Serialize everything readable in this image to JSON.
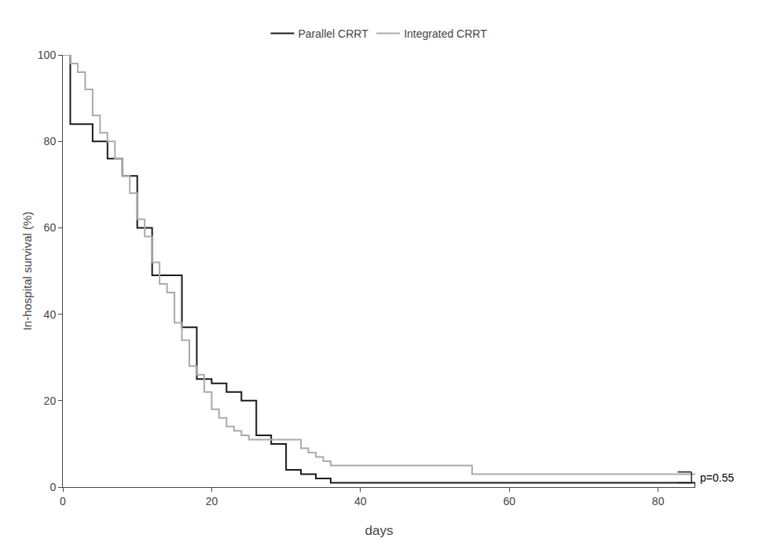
{
  "chart_data": {
    "type": "line",
    "xlabel": "days",
    "ylabel": "In-hospital survival (%)",
    "series": [
      {
        "name": "Parallel CRRT",
        "color": "#1a1a1a",
        "line_style": "step",
        "x": [
          0,
          1,
          2,
          3,
          4,
          5,
          6,
          7,
          8,
          9,
          10,
          11,
          12,
          13,
          14,
          15,
          16,
          17,
          18,
          19,
          20,
          21,
          22,
          23,
          24,
          25,
          26,
          27,
          28,
          29,
          30,
          31,
          32,
          33,
          34,
          35,
          36,
          38,
          50,
          85
        ],
        "values": [
          100,
          84,
          84,
          84,
          80,
          80,
          76,
          76,
          72,
          72,
          60,
          60,
          49,
          49,
          49,
          49,
          37,
          37,
          25,
          25,
          24,
          24,
          22,
          22,
          20,
          20,
          12,
          12,
          10,
          10,
          4,
          4,
          3,
          3,
          2,
          2,
          1,
          1,
          1,
          0
        ]
      },
      {
        "name": "Integrated CRRT",
        "color": "#aaaaaa",
        "line_style": "step",
        "x": [
          0,
          1,
          2,
          3,
          4,
          5,
          6,
          7,
          8,
          9,
          10,
          11,
          12,
          13,
          14,
          15,
          16,
          17,
          18,
          19,
          20,
          21,
          22,
          23,
          24,
          25,
          27,
          28,
          30,
          32,
          33,
          34,
          35,
          36,
          37,
          38,
          40,
          50,
          55,
          85
        ],
        "values": [
          100,
          98,
          96,
          92,
          86,
          82,
          80,
          76,
          72,
          68,
          62,
          58,
          52,
          47,
          45,
          38,
          34,
          28,
          26,
          22,
          18,
          16,
          14,
          13,
          12,
          11,
          11,
          11,
          11,
          9,
          8,
          7,
          6,
          5,
          5,
          5,
          5,
          5,
          3,
          3
        ]
      }
    ],
    "xlim": [
      0,
      85
    ],
    "xticks": [
      0,
      20,
      40,
      60,
      80
    ],
    "ylim": [
      0,
      100
    ],
    "yticks": [
      0,
      20,
      40,
      60,
      80,
      100
    ],
    "grid": false,
    "legend": "top",
    "annotations": [
      {
        "text": "p=0.55"
      }
    ]
  }
}
